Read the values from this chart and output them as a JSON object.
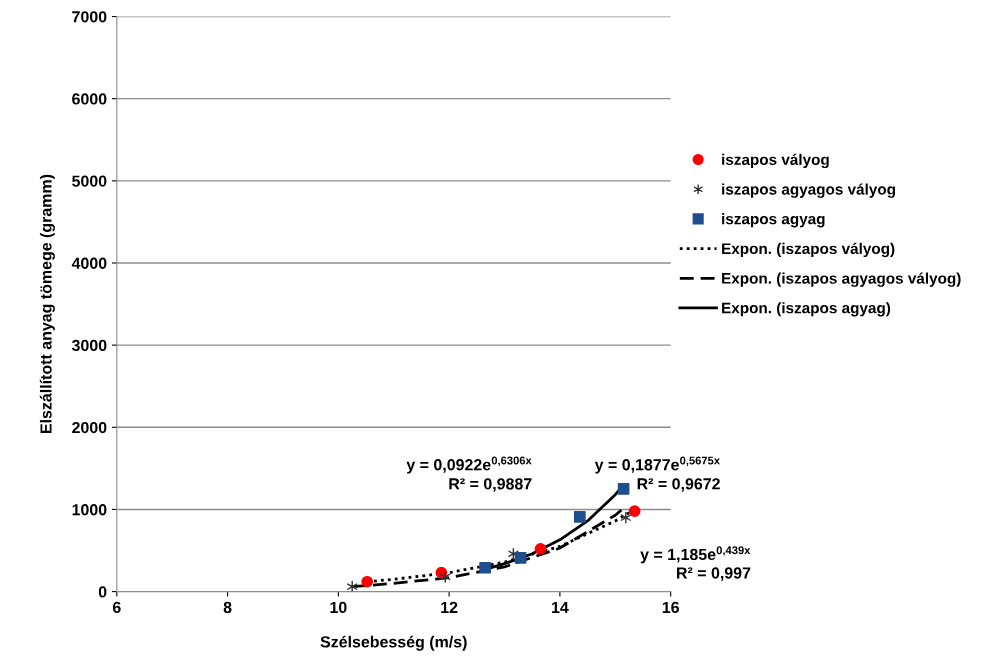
{
  "chart_data": {
    "type": "scatter",
    "xlabel": "Szélsebesség (m/s)",
    "ylabel": "Elszállított anyag tömege (gramm)",
    "xlim": [
      6,
      16
    ],
    "xticks": [
      6,
      8,
      10,
      12,
      14,
      16
    ],
    "ylim": [
      0,
      7000
    ],
    "yticks": [
      0,
      1000,
      2000,
      3000,
      4000,
      5000,
      6000,
      7000
    ],
    "grid": "y",
    "legend": "right",
    "series": [
      {
        "name": "iszapos vályog",
        "marker": "circle",
        "color": "#ff0000",
        "x": [
          10.52,
          11.86,
          13.65,
          15.35
        ],
        "values": [
          120,
          230,
          520,
          980
        ]
      },
      {
        "name": "iszapos agyagos vályog",
        "marker": "cross",
        "color": "#333333",
        "x": [
          10.25,
          11.93,
          13.16,
          15.19
        ],
        "values": [
          60,
          180,
          460,
          900
        ]
      },
      {
        "name": "iszapos agyag",
        "marker": "square",
        "color": "#1f4e8c",
        "x": [
          12.65,
          13.29,
          14.36,
          15.15
        ],
        "values": [
          290,
          410,
          910,
          1250
        ]
      },
      {
        "name": "Expon. (iszapos vályog)",
        "type": "line",
        "line_style": "dotted",
        "color": "#000000",
        "x": [
          10.52,
          11,
          12,
          13,
          14,
          15,
          15.35
        ],
        "values": [
          120,
          150,
          230,
          360,
          550,
          860,
          1000
        ]
      },
      {
        "name": "Expon. (iszapos agyagos vályog)",
        "type": "line",
        "line_style": "dashed",
        "color": "#000000",
        "x": [
          10.25,
          11,
          12,
          13,
          14,
          15,
          15.19
        ],
        "values": [
          60,
          100,
          170,
          300,
          530,
          930,
          1040
        ]
      },
      {
        "name": "Expon. (iszapos agyag)",
        "type": "line",
        "line_style": "solid",
        "color": "#000000",
        "x": [
          12.65,
          13,
          13.5,
          14,
          14.5,
          15,
          15.15
        ],
        "values": [
          270,
          340,
          460,
          630,
          860,
          1180,
          1300
        ]
      }
    ],
    "annotations": [
      "y = 0,0922e$^{0,6306x}$",
      "R² = 0,9887",
      "y = 0,1877e$^{0,5675x}$",
      "R² = 0,9672",
      "y = 1,185e$^{0,439x}$",
      "R² = 0,997"
    ]
  }
}
